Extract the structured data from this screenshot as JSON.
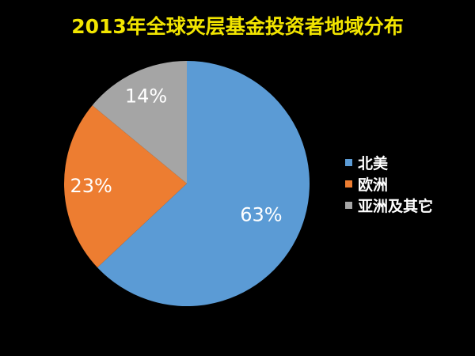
{
  "chart_data": {
    "type": "pie",
    "title": "2013年全球夹层基金投资者地域分布",
    "categories": [
      "北美",
      "欧洲",
      "亚洲及其它"
    ],
    "values": [
      63,
      23,
      14
    ],
    "value_labels": [
      "63%",
      "23%",
      "14%"
    ],
    "unit": "%",
    "colors": [
      "#5b9bd5",
      "#ed7d31",
      "#a5a5a5"
    ],
    "legend_position": "right",
    "start_angle": "12 o'clock, clockwise"
  }
}
